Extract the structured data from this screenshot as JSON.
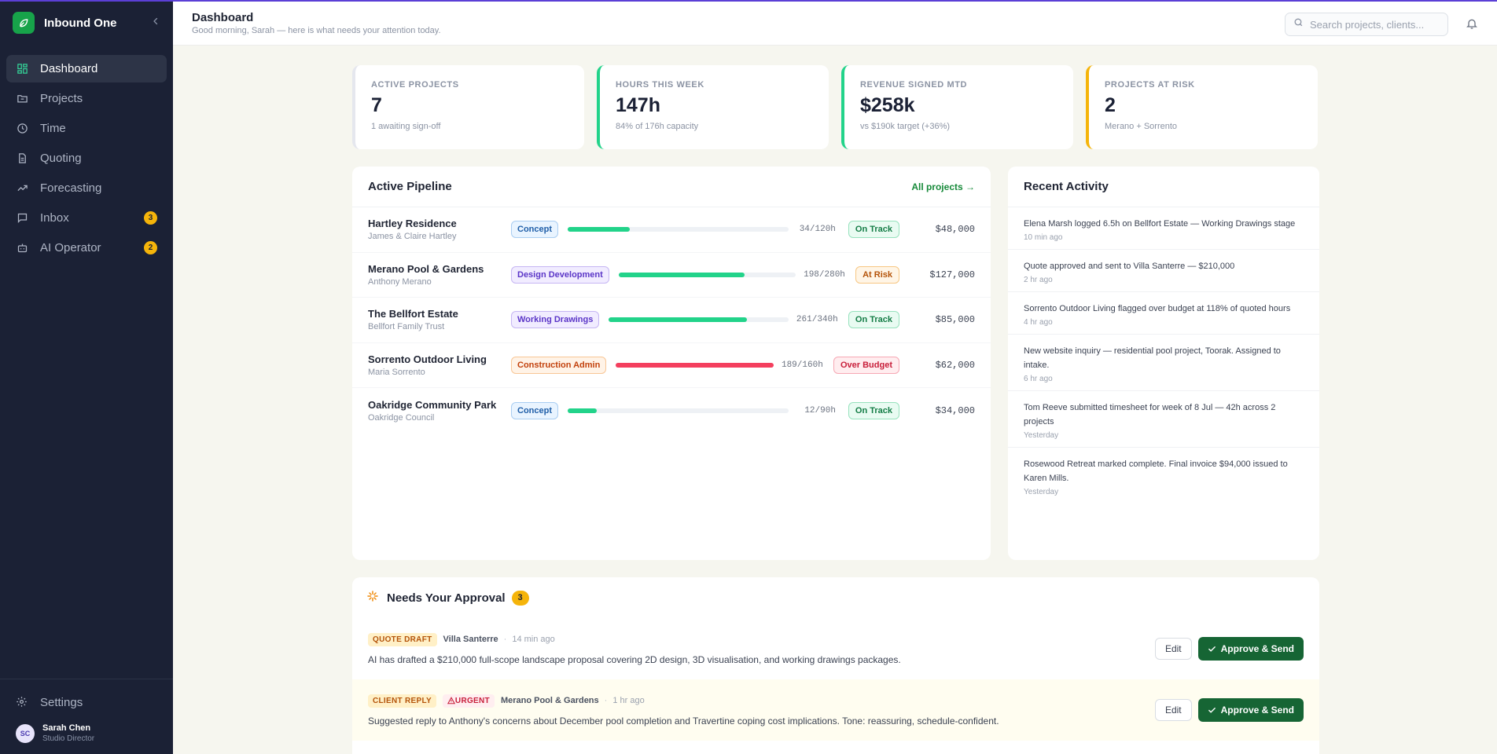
{
  "app": {
    "name": "Inbound One"
  },
  "sidebar": {
    "items": [
      {
        "label": "Dashboard",
        "icon": "grid-icon",
        "active": true
      },
      {
        "label": "Projects",
        "icon": "folder-icon"
      },
      {
        "label": "Time",
        "icon": "clock-icon"
      },
      {
        "label": "Quoting",
        "icon": "document-icon"
      },
      {
        "label": "Forecasting",
        "icon": "trending-icon"
      },
      {
        "label": "Inbox",
        "icon": "message-icon",
        "badge": "3"
      },
      {
        "label": "AI Operator",
        "icon": "robot-icon",
        "badge": "2"
      }
    ],
    "settings_label": "Settings",
    "user": {
      "initials": "SC",
      "name": "Sarah Chen",
      "role": "Studio Director"
    }
  },
  "header": {
    "title": "Dashboard",
    "subtitle": "Good morning, Sarah — here is what needs your attention today.",
    "search_placeholder": "Search projects, clients..."
  },
  "stats": [
    {
      "label": "ACTIVE PROJECTS",
      "value": "7",
      "sub": "1 awaiting sign-off",
      "accent": "#e5e7ee"
    },
    {
      "label": "HOURS THIS WEEK",
      "value": "147h",
      "sub": "84% of 176h capacity",
      "accent": "#22d38a"
    },
    {
      "label": "REVENUE SIGNED MTD",
      "value": "$258k",
      "sub": "vs $190k target (+36%)",
      "accent": "#22d38a"
    },
    {
      "label": "PROJECTS AT RISK",
      "value": "2",
      "sub": "Merano + Sorrento",
      "accent": "#f5b40a"
    }
  ],
  "pipeline": {
    "title": "Active Pipeline",
    "link_label": "All projects →",
    "projects": [
      {
        "name": "Hartley Residence",
        "client": "James & Claire Hartley",
        "stage": "Concept",
        "progress": 0.28,
        "hours": "34/120h",
        "status": "On Track",
        "amount": "$48,000"
      },
      {
        "name": "Merano Pool & Gardens",
        "client": "Anthony Merano",
        "stage": "Design Development",
        "progress": 0.71,
        "hours": "198/280h",
        "status": "At Risk",
        "amount": "$127,000"
      },
      {
        "name": "The Bellfort Estate",
        "client": "Bellfort Family Trust",
        "stage": "Working Drawings",
        "progress": 0.77,
        "hours": "261/340h",
        "status": "On Track",
        "amount": "$85,000"
      },
      {
        "name": "Sorrento Outdoor Living",
        "client": "Maria Sorrento",
        "stage": "Construction Admin",
        "progress": 1.0,
        "hours": "189/160h",
        "status": "Over Budget",
        "amount": "$62,000"
      },
      {
        "name": "Oakridge Community Park",
        "client": "Oakridge Council",
        "stage": "Concept",
        "progress": 0.13,
        "hours": "12/90h",
        "status": "On Track",
        "amount": "$34,000"
      }
    ]
  },
  "activity": {
    "title": "Recent Activity",
    "items": [
      {
        "text": "Elena Marsh logged 6.5h on Bellfort Estate — Working Drawings stage",
        "time": "10 min ago"
      },
      {
        "text": "Quote approved and sent to Villa Santerre — $210,000",
        "time": "2 hr ago"
      },
      {
        "text": "Sorrento Outdoor Living flagged over budget at 118% of quoted hours",
        "time": "4 hr ago"
      },
      {
        "text": "New website inquiry — residential pool project, Toorak. Assigned to intake.",
        "time": "6 hr ago"
      },
      {
        "text": "Tom Reeve submitted timesheet for week of 8 Jul — 42h across 2 projects",
        "time": "Yesterday"
      },
      {
        "text": "Rosewood Retreat marked complete. Final invoice $94,000 issued to Karen Mills.",
        "time": "Yesterday"
      }
    ]
  },
  "approvals": {
    "title": "Needs Your Approval",
    "count": "3",
    "edit_label": "Edit",
    "approve_label": "Approve & Send",
    "items": [
      {
        "tag": "QUOTE DRAFT",
        "urgent": "",
        "client": "Villa Santerre",
        "time": "14 min ago",
        "desc": "AI has drafted a $210,000 full-scope landscape proposal covering 2D design, 3D visualisation, and working drawings packages."
      },
      {
        "tag": "CLIENT REPLY",
        "urgent": "URGENT",
        "client": "Merano Pool & Gardens",
        "time": "1 hr ago",
        "desc": "Suggested reply to Anthony's concerns about December pool completion and Travertine coping cost implications. Tone: reassuring, schedule-confident."
      }
    ]
  }
}
